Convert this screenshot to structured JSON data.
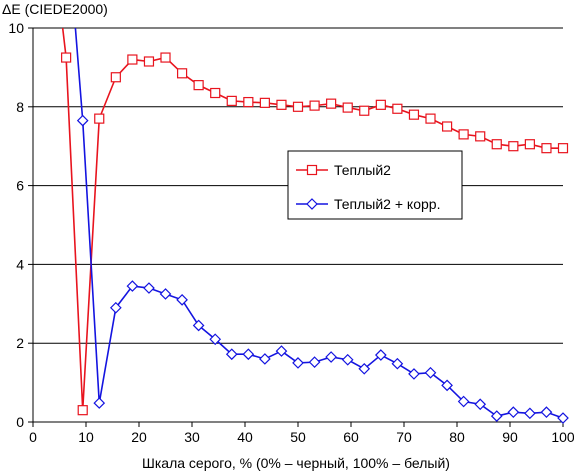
{
  "chart_data": {
    "type": "line",
    "title": "",
    "ylabel": "ΔE (CIEDE2000)",
    "xlabel": "Шкала серого, % (0% – черный, 100% – белый)",
    "xlim": [
      0,
      100
    ],
    "ylim": [
      0,
      10
    ],
    "xticks": [
      0,
      10,
      20,
      30,
      40,
      50,
      60,
      70,
      80,
      90,
      100
    ],
    "yticks": [
      0,
      2,
      4,
      6,
      8,
      10
    ],
    "grid": "horizontal",
    "legend_position": "center-right",
    "series": [
      {
        "name": "Теплый2",
        "color": "#e8141e",
        "marker": "square",
        "clip_start": {
          "x": 5.6,
          "y": 10.0
        },
        "x": [
          6.25,
          9.38,
          12.5,
          15.63,
          18.75,
          21.88,
          25.0,
          28.13,
          31.25,
          34.38,
          37.5,
          40.63,
          43.75,
          46.88,
          50.0,
          53.13,
          56.25,
          59.38,
          62.5,
          65.63,
          68.75,
          71.88,
          75.0,
          78.13,
          81.25,
          84.38,
          87.5,
          90.63,
          93.75,
          96.88,
          100.0
        ],
        "y": [
          9.25,
          0.3,
          7.7,
          8.75,
          9.2,
          9.15,
          9.25,
          8.85,
          8.55,
          8.35,
          8.15,
          8.12,
          8.1,
          8.05,
          8.0,
          8.03,
          8.08,
          7.98,
          7.9,
          8.05,
          7.95,
          7.8,
          7.7,
          7.5,
          7.3,
          7.25,
          7.05,
          7.0,
          7.05,
          6.95,
          6.95
        ]
      },
      {
        "name": "Теплый2 + корр.",
        "color": "#1414e0",
        "marker": "diamond",
        "clip_start": {
          "x": 8.0,
          "y": 10.0
        },
        "x": [
          9.38,
          12.5,
          15.63,
          18.75,
          21.88,
          25.0,
          28.13,
          31.25,
          34.38,
          37.5,
          40.63,
          43.75,
          46.88,
          50.0,
          53.13,
          56.25,
          59.38,
          62.5,
          65.63,
          68.75,
          71.88,
          75.0,
          78.13,
          81.25,
          84.38,
          87.5,
          90.63,
          93.75,
          96.88,
          100.0
        ],
        "y": [
          7.65,
          0.48,
          2.9,
          3.45,
          3.4,
          3.25,
          3.1,
          2.45,
          2.1,
          1.72,
          1.72,
          1.6,
          1.8,
          1.5,
          1.52,
          1.65,
          1.58,
          1.35,
          1.7,
          1.48,
          1.22,
          1.25,
          0.93,
          0.52,
          0.45,
          0.15,
          0.25,
          0.22,
          0.25,
          0.1
        ]
      }
    ]
  }
}
